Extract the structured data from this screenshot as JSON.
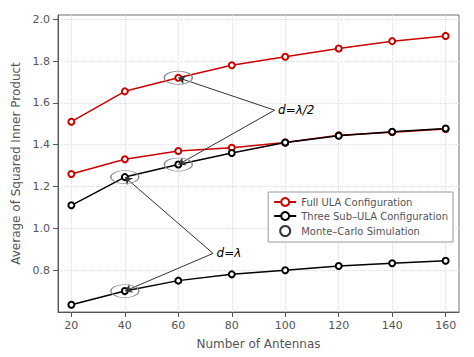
{
  "chart_data": {
    "type": "line",
    "xlabel": "Number of Antennas",
    "ylabel": "Average of Squared Inner Product",
    "x": [
      20,
      40,
      60,
      80,
      100,
      120,
      140,
      160
    ],
    "series": [
      {
        "name": "Full ULA Configuration",
        "color": "#cc0000",
        "marker": "hollow_circle",
        "values": [
          1.51,
          1.655,
          1.72,
          1.78,
          1.82,
          1.86,
          1.895,
          1.92
        ]
      },
      {
        "name": "Full ULA Configuration",
        "color": "#cc0000",
        "marker": "hollow_circle",
        "values": [
          1.26,
          1.33,
          1.37,
          1.385,
          1.41,
          1.445,
          1.46,
          1.475
        ]
      },
      {
        "name": "Three Sub–ULA Configuration",
        "color": "#000000",
        "marker": "hollow_circle",
        "values": [
          1.11,
          1.245,
          1.305,
          1.36,
          1.41,
          1.443,
          1.462,
          1.477
        ]
      },
      {
        "name": "Three Sub–ULA Configuration",
        "color": "#000000",
        "marker": "hollow_circle",
        "values": [
          0.635,
          0.7,
          0.75,
          0.78,
          0.8,
          0.82,
          0.833,
          0.845
        ]
      },
      {
        "name": "Monte–Carlo Simulation",
        "type": "scatter",
        "color": "#000000",
        "marker": "hollow_circle",
        "values": [
          null,
          null,
          null,
          null,
          null,
          null,
          null,
          null
        ]
      }
    ],
    "xlim": [
      15,
      165
    ],
    "ylim": [
      0.6,
      2.02
    ],
    "xticks": [
      20,
      40,
      60,
      80,
      100,
      120,
      140,
      160
    ],
    "yticks": [
      0.8,
      {
        "value": 1.0,
        "label": "1.0"
      },
      1.2,
      1.4,
      1.6,
      1.8,
      {
        "value": 2.0,
        "label": "2.0"
      }
    ],
    "grid": true,
    "legend": "lower right",
    "annotations": [
      {
        "text": "d=λ/2",
        "x": 96,
        "y": 1.565,
        "targets": [
          [
            60,
            1.72
          ],
          [
            60,
            1.305
          ]
        ]
      },
      {
        "text": "d=λ",
        "x": 73,
        "y": 0.88,
        "targets": [
          [
            40,
            0.7
          ],
          [
            40,
            1.245
          ]
        ]
      }
    ]
  }
}
